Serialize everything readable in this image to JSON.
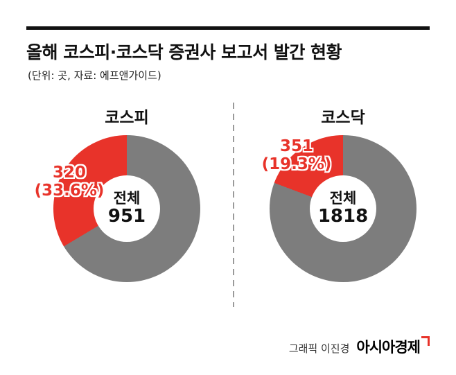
{
  "header": {
    "title": "올해 코스피·코스닥 증권사 보고서 발간 현황",
    "subtitle": "(단위: 곳, 자료: 에프앤가이드)"
  },
  "colors": {
    "accent": "#e8332a",
    "donut_rest": "#7d7d7d",
    "text": "#111111"
  },
  "chart_data": [
    {
      "type": "pie",
      "variant": "donut",
      "title": "코스피",
      "center_label": "전체",
      "center_value": "951",
      "highlight": {
        "value": 320,
        "pct": 33.6,
        "value_label": "320",
        "pct_label": "(33.6%)"
      },
      "colors": {
        "highlight": "#e8332a",
        "rest": "#7d7d7d"
      },
      "direction": "counterclockwise-from-top",
      "legend": "none",
      "grid": false
    },
    {
      "type": "pie",
      "variant": "donut",
      "title": "코스닥",
      "center_label": "전체",
      "center_value": "1818",
      "highlight": {
        "value": 351,
        "pct": 19.3,
        "value_label": "351",
        "pct_label": "(19.3%)"
      },
      "colors": {
        "highlight": "#e8332a",
        "rest": "#7d7d7d"
      },
      "direction": "counterclockwise-from-top",
      "legend": "none",
      "grid": false
    }
  ],
  "footer": {
    "credit": "그래픽 이진경",
    "brand": "아시아경제"
  }
}
